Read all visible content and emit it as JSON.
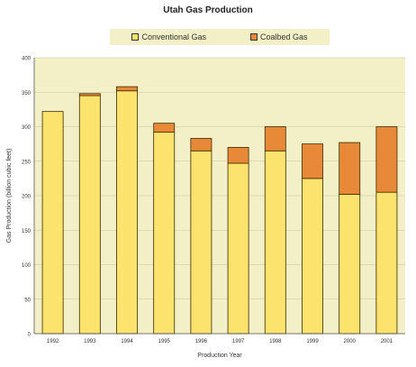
{
  "chart_data": {
    "type": "bar",
    "stacked": true,
    "title": "Utah Gas Production",
    "xlabel": "Production Year",
    "ylabel": "Gas Production (billion cubic feet)",
    "ylim": [
      0,
      400
    ],
    "yticks": [
      0,
      50,
      100,
      150,
      200,
      250,
      300,
      350,
      400
    ],
    "grid": true,
    "legend_position": "top",
    "categories": [
      "1992",
      "1993",
      "1994",
      "1995",
      "1996",
      "1997",
      "1998",
      "1999",
      "2000",
      "2001"
    ],
    "series": [
      {
        "name": "Conventional Gas",
        "color": "#fbe36e",
        "values": [
          322,
          345,
          352,
          292,
          265,
          247,
          265,
          225,
          202,
          205
        ]
      },
      {
        "name": "Coalbed Gas",
        "color": "#e8893a",
        "values": [
          0,
          3,
          6,
          13,
          18,
          23,
          35,
          50,
          75,
          95
        ]
      }
    ],
    "plot_background": "#f3efc6"
  }
}
